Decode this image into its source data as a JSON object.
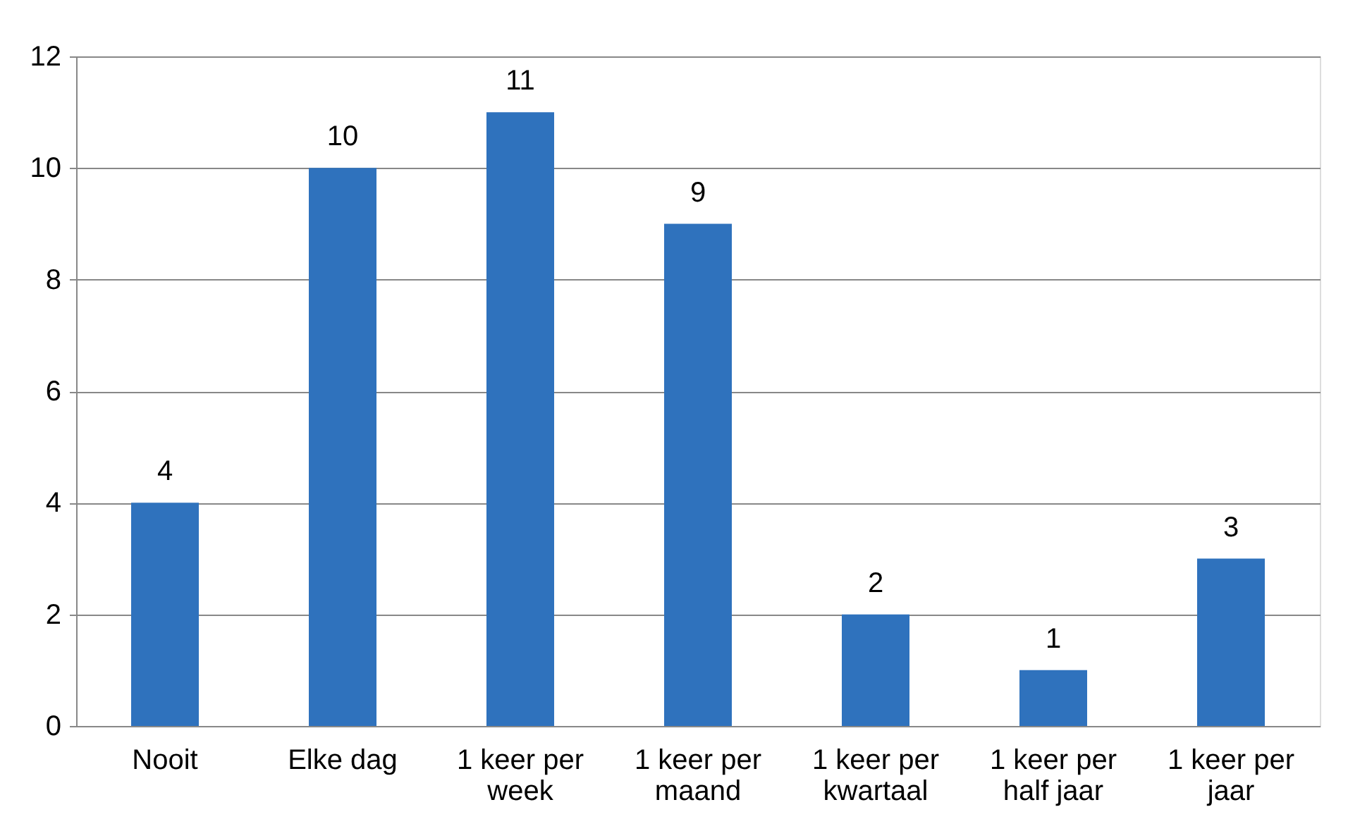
{
  "chart_data": {
    "type": "bar",
    "categories": [
      "Nooit",
      "Elke dag",
      "1 keer per week",
      "1 keer per maand",
      "1 keer per kwartaal",
      "1 keer per half jaar",
      "1 keer per jaar"
    ],
    "values": [
      4,
      10,
      11,
      9,
      2,
      1,
      3
    ],
    "color": "#2f72bd",
    "ylim": [
      0,
      12
    ],
    "yticks": [
      0,
      2,
      4,
      6,
      8,
      10,
      12
    ],
    "grid": "y",
    "data_labels": true
  }
}
